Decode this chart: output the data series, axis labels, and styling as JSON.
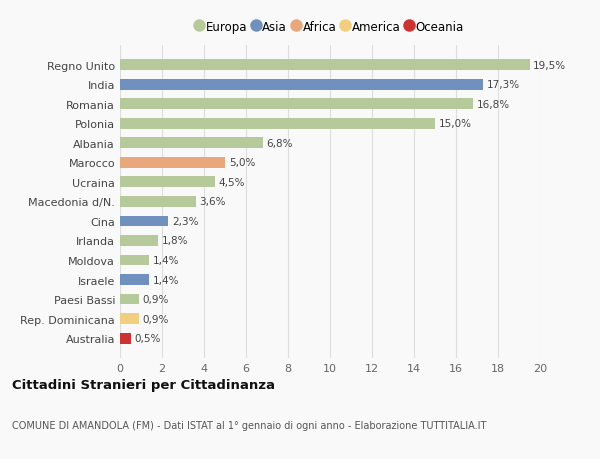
{
  "countries": [
    "Regno Unito",
    "India",
    "Romania",
    "Polonia",
    "Albania",
    "Marocco",
    "Ucraina",
    "Macedonia d/N.",
    "Cina",
    "Irlanda",
    "Moldova",
    "Israele",
    "Paesi Bassi",
    "Rep. Dominicana",
    "Australia"
  ],
  "values": [
    19.5,
    17.3,
    16.8,
    15.0,
    6.8,
    5.0,
    4.5,
    3.6,
    2.3,
    1.8,
    1.4,
    1.4,
    0.9,
    0.9,
    0.5
  ],
  "labels": [
    "19,5%",
    "17,3%",
    "16,8%",
    "15,0%",
    "6,8%",
    "5,0%",
    "4,5%",
    "3,6%",
    "2,3%",
    "1,8%",
    "1,4%",
    "1,4%",
    "0,9%",
    "0,9%",
    "0,5%"
  ],
  "continents": [
    "Europa",
    "Asia",
    "Europa",
    "Europa",
    "Europa",
    "Africa",
    "Europa",
    "Europa",
    "Asia",
    "Europa",
    "Europa",
    "Asia",
    "Europa",
    "America",
    "Oceania"
  ],
  "colors": {
    "Europa": "#b5c99a",
    "Asia": "#7090be",
    "Africa": "#e8a87c",
    "America": "#f0d080",
    "Oceania": "#cc3333"
  },
  "legend_order": [
    "Europa",
    "Asia",
    "Africa",
    "America",
    "Oceania"
  ],
  "xlim": [
    0,
    20
  ],
  "xticks": [
    0,
    2,
    4,
    6,
    8,
    10,
    12,
    14,
    16,
    18,
    20
  ],
  "title": "Cittadini Stranieri per Cittadinanza",
  "subtitle": "COMUNE DI AMANDOLA (FM) - Dati ISTAT al 1° gennaio di ogni anno - Elaborazione TUTTITALIA.IT",
  "background_color": "#f9f9f9",
  "grid_color": "#dddddd"
}
